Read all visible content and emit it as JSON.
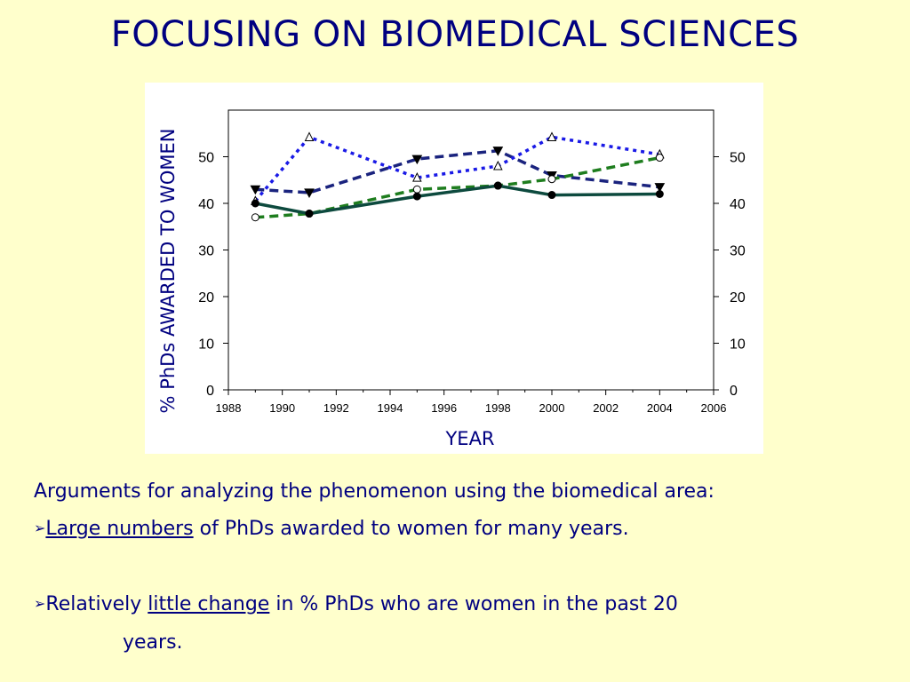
{
  "slide": {
    "title": "FOCUSING ON BIOMEDICAL SCIENCES"
  },
  "text": {
    "line1": "Arguments for analyzing the phenomenon using the biomedical area:",
    "bullet_glyph": "➢",
    "bullet1_emph": "Large numbers",
    "bullet1_rest": " of PhDs awarded to women for many years.",
    "bullet2_pre": "Relatively ",
    "bullet2_emph": "little change",
    "bullet2_rest": " in % PhDs who are women in the past 20",
    "bullet2_cont": "years."
  },
  "colors": {
    "title": "#000080",
    "background": "#ffffcc",
    "series_navy": "#1a237e",
    "series_blue": "#1a1ae6",
    "series_green": "#1e7d1e",
    "series_darkteal": "#0d4a3e"
  },
  "chart_data": {
    "type": "line",
    "xlabel": "YEAR",
    "ylabel": "% PhDs AWARDED TO WOMEN",
    "xlim": [
      1988,
      2006
    ],
    "ylim": [
      0,
      60
    ],
    "x_ticks": [
      "1988",
      "1990",
      "1992",
      "1994",
      "1996",
      "1998",
      "2000",
      "2002",
      "2004",
      "2006"
    ],
    "y_ticks": [
      "0",
      "10",
      "20",
      "30",
      "40",
      "50"
    ],
    "grid": false,
    "series": [
      {
        "color": "#1a237e",
        "dash": "dash",
        "marker": "filled-triangle-down",
        "points": [
          [
            1989,
            43
          ],
          [
            1991,
            42.3
          ],
          [
            1995,
            49.5
          ],
          [
            1998,
            51.3
          ],
          [
            2000,
            46
          ],
          [
            2004,
            43.5
          ]
        ]
      },
      {
        "color": "#1a1ae6",
        "dash": "dot",
        "marker": "open-triangle-up",
        "points": [
          [
            1989,
            40.5
          ],
          [
            1991,
            54.2
          ],
          [
            1995,
            45.5
          ],
          [
            1998,
            48
          ],
          [
            2000,
            54.2
          ],
          [
            2004,
            50.5
          ]
        ]
      },
      {
        "color": "#1e7d1e",
        "dash": "dash",
        "marker": "open-circle",
        "points": [
          [
            1989,
            37
          ],
          [
            1991,
            37.8
          ],
          [
            1995,
            43
          ],
          [
            1998,
            43.8
          ],
          [
            2000,
            45.2
          ],
          [
            2004,
            49.8
          ]
        ]
      },
      {
        "color": "#0d4a3e",
        "dash": "solid",
        "marker": "filled-circle",
        "points": [
          [
            1989,
            40
          ],
          [
            1991,
            37.8
          ],
          [
            1995,
            41.5
          ],
          [
            1998,
            43.8
          ],
          [
            2000,
            41.8
          ],
          [
            2004,
            42
          ]
        ]
      }
    ]
  }
}
